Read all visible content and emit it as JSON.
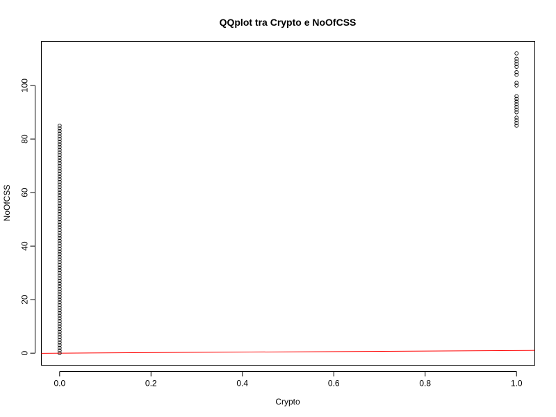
{
  "chart_data": {
    "type": "scatter",
    "title": "QQplot tra Crypto e NoOfCSS",
    "xlabel": "Crypto",
    "ylabel": "NoOfCSS",
    "xlim": [
      -0.04,
      1.04
    ],
    "ylim": [
      -4.5,
      116.5
    ],
    "x_ticks": [
      0.0,
      0.2,
      0.4,
      0.6,
      0.8,
      1.0
    ],
    "x_tick_labels": [
      "0.0",
      "0.2",
      "0.4",
      "0.6",
      "0.8",
      "1.0"
    ],
    "y_ticks": [
      0,
      20,
      40,
      60,
      80,
      100
    ],
    "y_tick_labels": [
      "0",
      "20",
      "40",
      "60",
      "80",
      "100"
    ],
    "series": [
      {
        "marker": "open-circle",
        "color": "#000000",
        "points": [
          {
            "x": 0,
            "y": 0
          },
          {
            "x": 0,
            "y": 1
          },
          {
            "x": 0,
            "y": 2
          },
          {
            "x": 0,
            "y": 3
          },
          {
            "x": 0,
            "y": 4
          },
          {
            "x": 0,
            "y": 5
          },
          {
            "x": 0,
            "y": 6
          },
          {
            "x": 0,
            "y": 7
          },
          {
            "x": 0,
            "y": 8
          },
          {
            "x": 0,
            "y": 9
          },
          {
            "x": 0,
            "y": 10
          },
          {
            "x": 0,
            "y": 11
          },
          {
            "x": 0,
            "y": 12
          },
          {
            "x": 0,
            "y": 13
          },
          {
            "x": 0,
            "y": 14
          },
          {
            "x": 0,
            "y": 15
          },
          {
            "x": 0,
            "y": 16
          },
          {
            "x": 0,
            "y": 17
          },
          {
            "x": 0,
            "y": 18
          },
          {
            "x": 0,
            "y": 19
          },
          {
            "x": 0,
            "y": 20
          },
          {
            "x": 0,
            "y": 21
          },
          {
            "x": 0,
            "y": 22
          },
          {
            "x": 0,
            "y": 23
          },
          {
            "x": 0,
            "y": 24
          },
          {
            "x": 0,
            "y": 25
          },
          {
            "x": 0,
            "y": 26
          },
          {
            "x": 0,
            "y": 27
          },
          {
            "x": 0,
            "y": 28
          },
          {
            "x": 0,
            "y": 29
          },
          {
            "x": 0,
            "y": 30
          },
          {
            "x": 0,
            "y": 31
          },
          {
            "x": 0,
            "y": 32
          },
          {
            "x": 0,
            "y": 33
          },
          {
            "x": 0,
            "y": 34
          },
          {
            "x": 0,
            "y": 35
          },
          {
            "x": 0,
            "y": 36
          },
          {
            "x": 0,
            "y": 37
          },
          {
            "x": 0,
            "y": 38
          },
          {
            "x": 0,
            "y": 39
          },
          {
            "x": 0,
            "y": 40
          },
          {
            "x": 0,
            "y": 41
          },
          {
            "x": 0,
            "y": 42
          },
          {
            "x": 0,
            "y": 43
          },
          {
            "x": 0,
            "y": 44
          },
          {
            "x": 0,
            "y": 45
          },
          {
            "x": 0,
            "y": 46
          },
          {
            "x": 0,
            "y": 47
          },
          {
            "x": 0,
            "y": 48
          },
          {
            "x": 0,
            "y": 49
          },
          {
            "x": 0,
            "y": 50
          },
          {
            "x": 0,
            "y": 51
          },
          {
            "x": 0,
            "y": 52
          },
          {
            "x": 0,
            "y": 53
          },
          {
            "x": 0,
            "y": 54
          },
          {
            "x": 0,
            "y": 55
          },
          {
            "x": 0,
            "y": 56
          },
          {
            "x": 0,
            "y": 57
          },
          {
            "x": 0,
            "y": 58
          },
          {
            "x": 0,
            "y": 59
          },
          {
            "x": 0,
            "y": 60
          },
          {
            "x": 0,
            "y": 61
          },
          {
            "x": 0,
            "y": 62
          },
          {
            "x": 0,
            "y": 63
          },
          {
            "x": 0,
            "y": 64
          },
          {
            "x": 0,
            "y": 65
          },
          {
            "x": 0,
            "y": 66
          },
          {
            "x": 0,
            "y": 67
          },
          {
            "x": 0,
            "y": 68
          },
          {
            "x": 0,
            "y": 69
          },
          {
            "x": 0,
            "y": 70
          },
          {
            "x": 0,
            "y": 71
          },
          {
            "x": 0,
            "y": 72
          },
          {
            "x": 0,
            "y": 73
          },
          {
            "x": 0,
            "y": 74
          },
          {
            "x": 0,
            "y": 75
          },
          {
            "x": 0,
            "y": 76
          },
          {
            "x": 0,
            "y": 77
          },
          {
            "x": 0,
            "y": 78
          },
          {
            "x": 0,
            "y": 79
          },
          {
            "x": 0,
            "y": 80
          },
          {
            "x": 0,
            "y": 81
          },
          {
            "x": 0,
            "y": 82
          },
          {
            "x": 0,
            "y": 83
          },
          {
            "x": 0,
            "y": 84
          },
          {
            "x": 0,
            "y": 85
          },
          {
            "x": 1,
            "y": 85
          },
          {
            "x": 1,
            "y": 86
          },
          {
            "x": 1,
            "y": 87
          },
          {
            "x": 1,
            "y": 88
          },
          {
            "x": 1,
            "y": 90
          },
          {
            "x": 1,
            "y": 91
          },
          {
            "x": 1,
            "y": 92
          },
          {
            "x": 1,
            "y": 93
          },
          {
            "x": 1,
            "y": 94
          },
          {
            "x": 1,
            "y": 95
          },
          {
            "x": 1,
            "y": 96
          },
          {
            "x": 1,
            "y": 100
          },
          {
            "x": 1,
            "y": 101
          },
          {
            "x": 1,
            "y": 104
          },
          {
            "x": 1,
            "y": 105
          },
          {
            "x": 1,
            "y": 107
          },
          {
            "x": 1,
            "y": 108
          },
          {
            "x": 1,
            "y": 109
          },
          {
            "x": 1,
            "y": 110
          },
          {
            "x": 1,
            "y": 112
          }
        ]
      }
    ],
    "reference_line": {
      "color": "#ff0000",
      "x": [
        -0.04,
        1.04
      ],
      "y": [
        -0.04,
        1.04
      ]
    },
    "grid": false,
    "legend": "none"
  }
}
